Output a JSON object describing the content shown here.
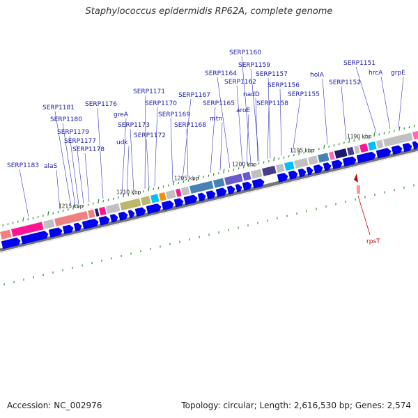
{
  "title": "Staphylococcus epidermidis RP62A, complete genome",
  "accession": "Accession: NC_002976",
  "summary": "Topology: circular; Length: 2,616,530 bp; Genes: 2,574",
  "colors": {
    "label": "#1a1aa6",
    "arrow": "#0000ee",
    "tick": "#2a8a2a",
    "rna": "#cc0000"
  },
  "kbp_labels": [
    {
      "text": "1215 kbp",
      "pos": 1215
    },
    {
      "text": "1210 kbp",
      "pos": 1210
    },
    {
      "text": "1205 kbp",
      "pos": 1205
    },
    {
      "text": "1200 kbp",
      "pos": 1200
    },
    {
      "text": "1195 kbp",
      "pos": 1195
    },
    {
      "text": "1190 kbp",
      "pos": 1190
    }
  ],
  "gene_labels": [
    {
      "name": "SERP1183"
    },
    {
      "name": "alaS"
    },
    {
      "name": "SERP1181"
    },
    {
      "name": "SERP1180"
    },
    {
      "name": "SERP1179"
    },
    {
      "name": "SERP1177"
    },
    {
      "name": "SERP1178"
    },
    {
      "name": "SERP1176"
    },
    {
      "name": "greA"
    },
    {
      "name": "udk"
    },
    {
      "name": "SERP1173"
    },
    {
      "name": "SERP1171"
    },
    {
      "name": "SERP1170"
    },
    {
      "name": "SERP1172"
    },
    {
      "name": "SERP1169"
    },
    {
      "name": "SERP1167"
    },
    {
      "name": "SERP1168"
    },
    {
      "name": "SERP1165"
    },
    {
      "name": "SERP1164"
    },
    {
      "name": "mtn"
    },
    {
      "name": "SERP1162"
    },
    {
      "name": "SERP1160"
    },
    {
      "name": "SERP1159"
    },
    {
      "name": "aroE"
    },
    {
      "name": "nadD"
    },
    {
      "name": "SERP1157"
    },
    {
      "name": "SERP1158"
    },
    {
      "name": "SERP1156"
    },
    {
      "name": "SERP1155"
    },
    {
      "name": "holA"
    },
    {
      "name": "SERP1152"
    },
    {
      "name": "SERP1151"
    },
    {
      "name": "hrcA"
    },
    {
      "name": "grpE"
    }
  ],
  "rna_label": {
    "name": "rpsT"
  },
  "cog_colors": [
    "#f08080",
    "#ff1493",
    "#c0c0c0",
    "#bdb76b",
    "#00bfff",
    "#ff8c00",
    "#4682b4",
    "#6a5acd",
    "#483d8b",
    "#9370db",
    "#00ced1",
    "#556b2f",
    "#d2b48c",
    "#ff69b4",
    "#808000",
    "#191970"
  ]
}
